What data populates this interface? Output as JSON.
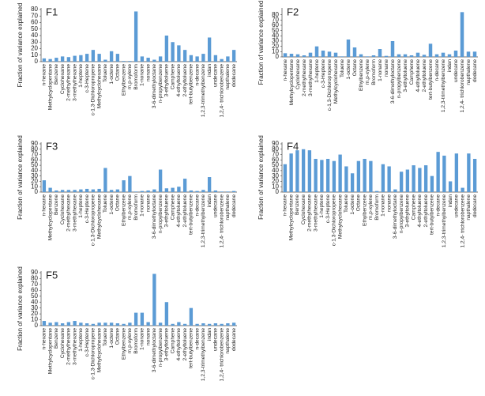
{
  "chart_data": [
    {
      "type": "bar",
      "title": "F1",
      "y_label": "Fraction of variance explained",
      "color": "#5b9bd5",
      "categories": [
        "n-hexane",
        "Methylcyclopentane",
        "Benzene",
        "Cyclohexane",
        "2-methylhexane",
        "3-methylhexane",
        "1-heptene",
        "c-3-Heptene",
        "c-1,3-Dichloropropene",
        "Methylcyclohexane",
        "Toluene",
        "1-octene",
        "Octane",
        "Ethylbenzene",
        "m,p-xylene",
        "Bromoform",
        "1-nonane",
        "nonane",
        "3-6-dimethyloctane",
        "n-propylbenzene",
        "3-ethyltoluene",
        "Camphene",
        "4-ethyltoluene",
        "2-ethyltoluene",
        "tert-butylbenzene",
        "n-decane",
        "1,2,3-trimethylbenzene",
        "indan",
        "undecane",
        "1,2,4- trichlorobenzene",
        "napthalene",
        "dodecane"
      ],
      "values": [
        5,
        4,
        6,
        8,
        7,
        9,
        10,
        12,
        18,
        12,
        3,
        16,
        12,
        1,
        1,
        77,
        8,
        6,
        3,
        8,
        40,
        30,
        25,
        18,
        10,
        8,
        12,
        37,
        10,
        4,
        8,
        18
      ],
      "ylim": [
        0,
        80
      ],
      "yticks": [
        0,
        10,
        20,
        30,
        40,
        50,
        60,
        70,
        80
      ]
    },
    {
      "type": "bar",
      "title": "F2",
      "y_label": "Fraction of variance explained",
      "color": "#5b9bd5",
      "categories": [
        "n-hexane",
        "Methylcyclopentane",
        "Cyclohexane",
        "2-methylhexane",
        "3-methylhexane",
        "1-heptene",
        "c-3-Heptene",
        "c-1,3-Dichloropropene",
        "Methylcyclohexane",
        "Toluene",
        "1-octene",
        "Octane",
        "Ethylbenzene",
        "m,p-xylene",
        "Bromoform",
        "1-nonane",
        "nonane",
        "3-6-dimethyloctane",
        "n-propylbenzene",
        "3-ethyltoluene",
        "Camphene",
        "4-ethyltoluene",
        "2-ethyltoluene",
        "tert-butylbenzene",
        "n-decane",
        "1,2,3-trimethylbenzene",
        "indan",
        "undecane",
        "1,2,4- trichlorobenzene",
        "napthalene",
        "dodecane"
      ],
      "values": [
        7,
        6,
        5,
        3,
        8,
        20,
        12,
        10,
        8,
        1,
        33,
        18,
        5,
        1,
        3,
        15,
        2,
        30,
        5,
        5,
        3,
        8,
        4,
        25,
        5,
        8,
        5,
        12,
        85,
        10,
        10
      ],
      "ylim": [
        0,
        90
      ],
      "yticks": [
        0,
        10,
        20,
        30,
        40,
        50,
        60,
        70,
        80
      ]
    },
    {
      "type": "bar",
      "title": "F3",
      "y_label": "Fraction of variance explained",
      "color": "#5b9bd5",
      "categories": [
        "n-hexane",
        "Methylcyclopentane",
        "Benzene",
        "Cyclohexane",
        "2-methylhexane",
        "3-methylhexane",
        "1-heptene",
        "c-3-Heptene",
        "c-1,3-Dichloropropene",
        "Methylcyclohexane",
        "Toluene",
        "1-octene",
        "Octane",
        "Ethylbenzene",
        "m,p-xylene",
        "Bromoform",
        "1-nonane",
        "nonane",
        "3-6-dimethyloctane",
        "n-propylbenzene",
        "3-ethyltoluene",
        "Camphene",
        "4-ethyltoluene",
        "2-ethyltoluene",
        "tert-butylbenzene",
        "n-decane",
        "1,2,3-trimethylbenzene",
        "indan",
        "undecane",
        "1,2,4- trichlorobenzene",
        "napthalene",
        "dodecane"
      ],
      "values": [
        22,
        8,
        3,
        4,
        4,
        4,
        5,
        6,
        5,
        6,
        45,
        4,
        5,
        22,
        30,
        1,
        2,
        3,
        5,
        42,
        7,
        8,
        10,
        25,
        3,
        2,
        4,
        28,
        3,
        1,
        1,
        2
      ],
      "ylim": [
        0,
        90
      ],
      "yticks": [
        0,
        10,
        20,
        30,
        40,
        50,
        60,
        70,
        80,
        90
      ]
    },
    {
      "type": "bar",
      "title": "F4",
      "y_label": "Fraction of variance explained",
      "color": "#5b9bd5",
      "categories": [
        "n-hexane",
        "Methylcyclopentane",
        "Benzene",
        "Cyclohexane",
        "2-methylhexane",
        "3-methylhexane",
        "1-heptene",
        "c-3-Heptene",
        "c-1,3-Dichloropropene",
        "Methylcyclohexane",
        "Toluene",
        "1-octene",
        "Octane",
        "Ethylbenzene",
        "m,p-xylene",
        "Bromoform",
        "1-nonane",
        "nonane",
        "3-6-dimethyloctane",
        "n-propylbenzene",
        "3-ethyltoluene",
        "Camphene",
        "4-ethyltoluene",
        "2-ethyltoluene",
        "tert-butylbenzene",
        "n-decane",
        "1,2,3-trimethylbenzene",
        "indan",
        "undecane",
        "1,2,4- trichlorobenzene",
        "napthalene",
        "dodecane"
      ],
      "values": [
        52,
        72,
        78,
        80,
        78,
        62,
        60,
        62,
        58,
        70,
        48,
        35,
        58,
        62,
        58,
        2,
        52,
        48,
        5,
        38,
        42,
        50,
        45,
        50,
        30,
        75,
        68,
        20,
        72,
        8,
        72,
        62
      ],
      "ylim": [
        0,
        90
      ],
      "yticks": [
        0,
        10,
        20,
        30,
        40,
        50,
        60,
        70,
        80,
        90
      ]
    },
    {
      "type": "bar",
      "title": "F5",
      "y_label": "Fraction of variance explained",
      "color": "#5b9bd5",
      "categories": [
        "n-hexane",
        "Methylcyclopentane",
        "Benzene",
        "Cyclohexane",
        "2-methylhexane",
        "3-methylhexane",
        "1-heptene",
        "c-3-Heptene",
        "c-1,3-Dichloropropene",
        "Methylcyclohexane",
        "Toluene",
        "1-octene",
        "Octane",
        "Ethylbenzene",
        "m,p-xylene",
        "Bromoform",
        "1-nonane",
        "nonane",
        "3-6-dimethyloctane",
        "n-propylbenzene",
        "3-ethyltoluene",
        "Camphene",
        "4-ethyltoluene",
        "2-ethyltoluene",
        "tert-butylbenzene",
        "n-decane",
        "1,2,3-trimethylbenzene",
        "indan",
        "undecane",
        "1,2,4- trichlorobenzene",
        "napthalene",
        "dodecane"
      ],
      "values": [
        8,
        5,
        6,
        4,
        6,
        8,
        5,
        4,
        3,
        5,
        5,
        5,
        4,
        3,
        5,
        22,
        22,
        6,
        88,
        5,
        40,
        3,
        6,
        3,
        30,
        3,
        4,
        3,
        4,
        3,
        4,
        5
      ],
      "ylim": [
        0,
        90
      ],
      "yticks": [
        0,
        10,
        20,
        30,
        40,
        50,
        60,
        70,
        80,
        90
      ]
    }
  ]
}
